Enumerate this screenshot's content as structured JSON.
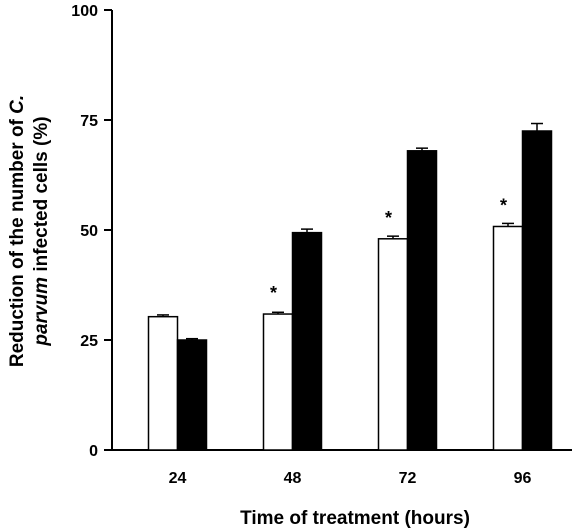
{
  "chart_data": {
    "type": "bar",
    "categories": [
      "24",
      "48",
      "72",
      "96"
    ],
    "series": [
      {
        "values": [
          30.3,
          30.9,
          48.0,
          50.8
        ],
        "errors": [
          0.4,
          0.4,
          0.6,
          0.7
        ],
        "fill": "#ffffff"
      },
      {
        "values": [
          25.0,
          49.4,
          68.0,
          72.5
        ],
        "errors": [
          0.3,
          0.8,
          0.6,
          1.7
        ],
        "fill": "#000000"
      }
    ],
    "significance": [
      "",
      "*",
      "*",
      "*"
    ],
    "xlabel": "Time of treatment (hours)",
    "ylabel_line1_pre": "Reduction of the number of ",
    "ylabel_line1_em": "C.",
    "ylabel_line2_em": "parvum",
    "ylabel_line2_post": " infected cells (%)",
    "ylim": [
      0,
      100
    ],
    "yticks": [
      "0",
      "25",
      "50",
      "75",
      "100"
    ],
    "grid": false,
    "legend": "none"
  }
}
